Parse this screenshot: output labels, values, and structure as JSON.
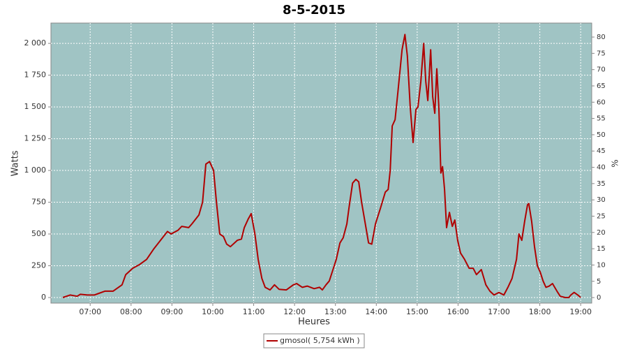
{
  "chart_data": {
    "type": "line",
    "title": "8-5-2015",
    "x_label": "Heures",
    "y_label": "Watts",
    "y2_label": "%",
    "x": [
      6.33,
      6.51,
      6.68,
      6.76,
      6.93,
      7.1,
      7.19,
      7.36,
      7.56,
      7.78,
      7.87,
      8.04,
      8.21,
      8.38,
      8.55,
      8.72,
      8.89,
      8.98,
      9.15,
      9.24,
      9.41,
      9.49,
      9.66,
      9.75,
      9.83,
      9.92,
      10.02,
      10.09,
      10.17,
      10.26,
      10.34,
      10.43,
      10.6,
      10.7,
      10.77,
      10.87,
      10.94,
      11.03,
      11.11,
      11.2,
      11.28,
      11.4,
      11.51,
      11.62,
      11.8,
      11.97,
      12.05,
      12.19,
      12.31,
      12.48,
      12.61,
      12.68,
      12.77,
      12.85,
      12.94,
      13.02,
      13.11,
      13.19,
      13.28,
      13.33,
      13.42,
      13.5,
      13.57,
      13.64,
      13.72,
      13.81,
      13.89,
      13.98,
      14.1,
      14.22,
      14.29,
      14.34,
      14.39,
      14.46,
      14.53,
      14.63,
      14.7,
      14.76,
      14.83,
      14.9,
      14.97,
      15.02,
      15.09,
      15.16,
      15.21,
      15.26,
      15.33,
      15.38,
      15.43,
      15.48,
      15.53,
      15.58,
      15.62,
      15.67,
      15.72,
      15.79,
      15.86,
      15.92,
      15.99,
      16.06,
      16.16,
      16.27,
      16.37,
      16.45,
      16.57,
      16.68,
      16.78,
      16.88,
      17.0,
      17.12,
      17.22,
      17.32,
      17.43,
      17.49,
      17.56,
      17.63,
      17.7,
      17.73,
      17.8,
      17.87,
      17.94,
      18.01,
      18.08,
      18.15,
      18.23,
      18.31,
      18.42,
      18.5,
      18.62,
      18.71,
      18.76,
      18.84,
      18.93,
      19.0
    ],
    "series": [
      {
        "name": "gmosol( 5,754 kWh )",
        "color": "#b00000",
        "values": [
          0,
          20,
          10,
          25,
          20,
          20,
          30,
          50,
          50,
          100,
          180,
          230,
          260,
          300,
          380,
          450,
          520,
          500,
          530,
          560,
          550,
          580,
          650,
          750,
          1050,
          1070,
          1000,
          750,
          500,
          480,
          420,
          400,
          450,
          460,
          550,
          620,
          660,
          500,
          300,
          150,
          80,
          60,
          100,
          65,
          60,
          100,
          110,
          80,
          90,
          70,
          80,
          60,
          100,
          130,
          220,
          300,
          430,
          470,
          580,
          700,
          900,
          930,
          910,
          750,
          600,
          430,
          420,
          580,
          700,
          830,
          850,
          1000,
          1350,
          1400,
          1620,
          1950,
          2070,
          1900,
          1500,
          1220,
          1480,
          1500,
          1700,
          2000,
          1700,
          1550,
          1950,
          1580,
          1450,
          1800,
          1500,
          980,
          1030,
          850,
          550,
          670,
          560,
          610,
          450,
          350,
          300,
          230,
          230,
          180,
          220,
          100,
          50,
          20,
          40,
          20,
          80,
          150,
          300,
          500,
          450,
          600,
          730,
          740,
          600,
          400,
          250,
          200,
          130,
          80,
          90,
          110,
          50,
          10,
          0,
          0,
          20,
          40,
          20,
          0
        ]
      }
    ],
    "xlim": [
      6.04,
      19.27
    ],
    "xticks": [
      {
        "value": 7,
        "label": "07:00"
      },
      {
        "value": 8,
        "label": "08:00"
      },
      {
        "value": 9,
        "label": "09:00"
      },
      {
        "value": 10,
        "label": "10:00"
      },
      {
        "value": 11,
        "label": "11:00"
      },
      {
        "value": 12,
        "label": "12:00"
      },
      {
        "value": 13,
        "label": "13:00"
      },
      {
        "value": 14,
        "label": "14:00"
      },
      {
        "value": 15,
        "label": "15:00"
      },
      {
        "value": 16,
        "label": "16:00"
      },
      {
        "value": 17,
        "label": "17:00"
      },
      {
        "value": 18,
        "label": "18:00"
      },
      {
        "value": 19,
        "label": "19:00"
      }
    ],
    "ylim": [
      -44,
      2160
    ],
    "yticks": [
      0,
      250,
      500,
      750,
      {
        "value": 1000,
        "label": "1 000"
      },
      {
        "value": 1250,
        "label": "1 250"
      },
      {
        "value": 1500,
        "label": "1 500"
      },
      {
        "value": 1750,
        "label": "1 750"
      },
      {
        "value": 2000,
        "label": "2 000"
      }
    ],
    "y2lim": [
      -1.7,
      84.3
    ],
    "y2ticks": [
      0,
      5,
      10,
      15,
      20,
      25,
      30,
      35,
      40,
      45,
      50,
      55,
      60,
      65,
      70,
      75,
      80
    ],
    "grid": true,
    "plot_background": "#a0c4c4",
    "legend": "bottom"
  }
}
